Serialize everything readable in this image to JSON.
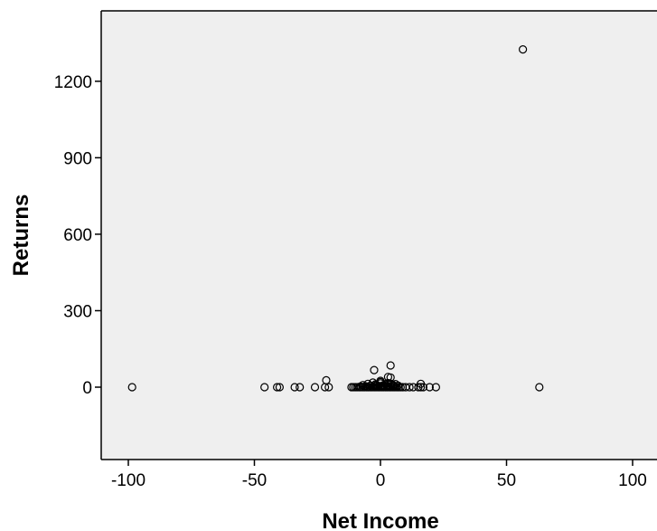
{
  "chart_data": {
    "type": "scatter",
    "title": "",
    "xlabel": "Net Income",
    "ylabel": "Returns",
    "xlim": [
      -110,
      110
    ],
    "ylim": [
      -280,
      1480
    ],
    "xticks": [
      -100,
      -50,
      0,
      50,
      100
    ],
    "xtick_labels": [
      "-100",
      "-50",
      "0",
      "50",
      "100"
    ],
    "yticks": [
      0,
      300,
      600,
      900,
      1200
    ],
    "ytick_labels": [
      "0",
      "300",
      "600",
      "900",
      "1200"
    ],
    "grid": false,
    "legend": "none",
    "colors": {
      "plot_background": "#efefef",
      "frame": "#000000",
      "marker_edge": "#000000",
      "marker_fill": "none"
    },
    "series": [
      {
        "x": [
          -98.5,
          -46,
          -41,
          -40,
          -34,
          -32,
          -26,
          -22,
          -21.5,
          -20.5,
          -11.5,
          -10.8,
          -10,
          -9.3,
          -8.5,
          -7.8,
          -7,
          -6.3,
          -5.5,
          -4.8,
          -4,
          -3.3,
          -2.5,
          -1.8,
          -1,
          -0.3,
          0.5,
          1.2,
          2,
          2.7,
          3.5,
          4.2,
          5,
          5.7,
          6.5,
          7.2,
          8,
          8.8,
          10,
          11.5,
          13,
          15,
          16,
          17,
          19.5,
          22,
          -8,
          -6,
          -5,
          -3,
          -2,
          -1,
          0,
          0.5,
          1,
          1.5,
          2.5,
          3,
          4,
          5,
          6,
          -7,
          -4,
          -1.5,
          1,
          3,
          5,
          7,
          -5,
          -2,
          0,
          2,
          4,
          -3,
          0,
          3,
          6,
          0,
          3,
          4,
          -2.5,
          4,
          16,
          56.5,
          63
        ],
        "y": [
          0,
          0,
          0,
          0,
          0,
          0,
          0,
          0,
          27,
          0,
          0,
          0,
          0,
          0,
          0,
          0,
          0,
          0,
          0,
          0,
          0,
          0,
          0,
          0,
          0,
          0,
          0,
          0,
          0,
          0,
          0,
          0,
          0,
          0,
          0,
          0,
          0,
          0,
          0,
          0,
          0,
          0,
          0,
          0,
          0,
          0,
          3,
          4,
          2,
          3,
          5,
          2,
          4,
          3,
          5,
          2,
          4,
          3,
          2,
          5,
          3,
          8,
          6,
          9,
          7,
          10,
          8,
          6,
          13,
          11,
          15,
          12,
          14,
          18,
          20,
          16,
          12,
          25,
          40,
          38,
          67,
          85,
          13,
          1325,
          0
        ]
      }
    ]
  }
}
